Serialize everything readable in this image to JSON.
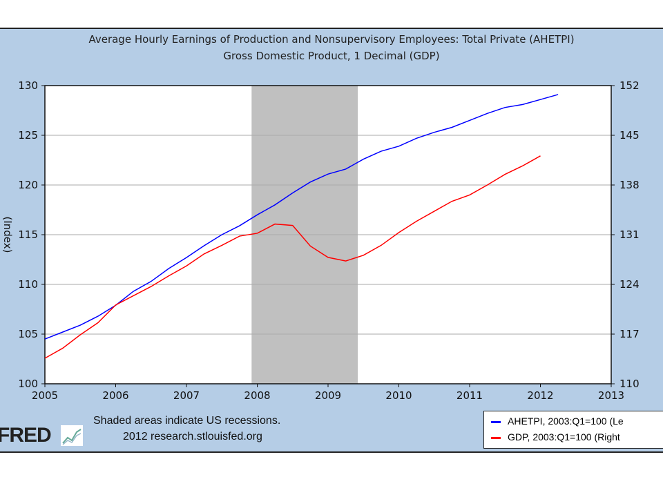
{
  "chart_data": {
    "type": "line",
    "title": [
      "Average Hourly Earnings of Production and Nonsupervisory Employees: Total Private (AHETPI)",
      "Gross Domestic Product, 1 Decimal (GDP)"
    ],
    "ylabel": "(Index)",
    "xlim": [
      2005,
      2013
    ],
    "xticks": [
      "2005",
      "2006",
      "2007",
      "2008",
      "2009",
      "2010",
      "2011",
      "2012",
      "2013"
    ],
    "ylim_left": [
      100,
      130
    ],
    "yticks_left": [
      "100",
      "105",
      "110",
      "115",
      "120",
      "125",
      "130"
    ],
    "ylim_right": [
      110,
      152
    ],
    "yticks_right": [
      "110",
      "117",
      "124",
      "131",
      "138",
      "145",
      "152"
    ],
    "grid": true,
    "recession": [
      2007.92,
      2009.42
    ],
    "series": [
      {
        "name": "AHETPI, 2003:Q1=100 (Le",
        "axis": "left",
        "color": "#0000ff",
        "x": [
          2005,
          2005.25,
          2005.5,
          2005.75,
          2006,
          2006.25,
          2006.5,
          2006.75,
          2007,
          2007.25,
          2007.5,
          2007.75,
          2008,
          2008.25,
          2008.5,
          2008.75,
          2009,
          2009.25,
          2009.5,
          2009.75,
          2010,
          2010.25,
          2010.5,
          2010.75,
          2011,
          2011.25,
          2011.5,
          2011.75,
          2012,
          2012.25
        ],
        "values": [
          104.5,
          105.2,
          105.9,
          106.8,
          107.9,
          109.3,
          110.3,
          111.6,
          112.7,
          113.9,
          115.0,
          115.9,
          117.0,
          118.0,
          119.2,
          120.3,
          121.1,
          121.6,
          122.6,
          123.4,
          123.9,
          124.7,
          125.3,
          125.8,
          126.5,
          127.2,
          127.8,
          128.1,
          128.6,
          129.1
        ]
      },
      {
        "name": "GDP, 2003:Q1=100 (Right",
        "axis": "right",
        "color": "#ff0000",
        "x": [
          2005,
          2005.25,
          2005.5,
          2005.75,
          2006,
          2006.25,
          2006.5,
          2006.75,
          2007,
          2007.25,
          2007.5,
          2007.75,
          2008,
          2008.25,
          2008.5,
          2008.75,
          2009,
          2009.25,
          2009.5,
          2009.75,
          2010,
          2010.25,
          2010.5,
          2010.75,
          2011,
          2011.25,
          2011.5,
          2011.75,
          2012
        ],
        "values": [
          113.6,
          115.0,
          116.9,
          118.6,
          121.1,
          122.4,
          123.7,
          125.2,
          126.6,
          128.3,
          129.5,
          130.8,
          131.2,
          132.5,
          132.3,
          129.4,
          127.8,
          127.3,
          128.1,
          129.5,
          131.3,
          132.9,
          134.3,
          135.7,
          136.6,
          138.0,
          139.5,
          140.7,
          142.1
        ]
      }
    ],
    "legend_placement": "bottom-right"
  },
  "footer": {
    "note": "Shaded areas indicate US recessions.",
    "source": "2012 research.stlouisfed.org",
    "logo": "FRED"
  }
}
